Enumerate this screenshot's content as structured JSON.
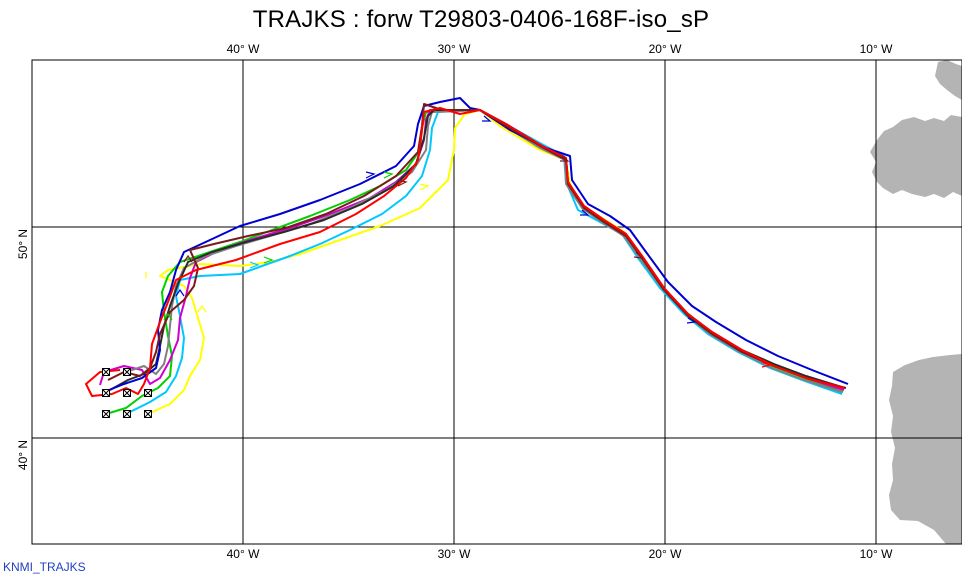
{
  "title": "TRAJKS : forw T29803-0406-168F-iso_sP",
  "credit": "KNMI_TRAJKS",
  "lon_labels": [
    "40° W",
    "30° W",
    "20° W",
    "10° W"
  ],
  "lat_labels": [
    "50° N",
    "40° N"
  ],
  "colors": {
    "land": "#b4b4b4",
    "grid": "#000000",
    "trajectories": [
      "#0000d0",
      "#00c8ff",
      "#00d000",
      "#d000d0",
      "#ff0000",
      "#7a1a1a",
      "#ffff00",
      "#808080",
      "#2a2a2a"
    ]
  },
  "map": {
    "projection": "lon-lat",
    "lon_range": [
      -49.7,
      -9.6
    ],
    "lat_range": [
      34.9,
      58.3
    ],
    "graticule_lon": [
      -40,
      -30,
      -20,
      -10
    ],
    "graticule_lat": [
      40,
      50
    ]
  }
}
